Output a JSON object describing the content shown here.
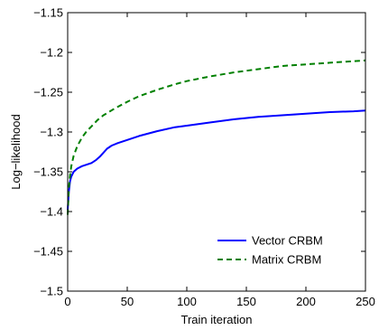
{
  "chart_data": {
    "type": "line",
    "xlabel": "Train iteration",
    "ylabel": "Log−likelihood",
    "xlim": [
      0,
      250
    ],
    "ylim": [
      -1.5,
      -1.15
    ],
    "xticks": [
      0,
      50,
      100,
      150,
      200,
      250
    ],
    "yticks": [
      -1.5,
      -1.45,
      -1.4,
      -1.35,
      -1.3,
      -1.25,
      -1.2,
      -1.15
    ],
    "xtick_labels": [
      "0",
      "50",
      "100",
      "150",
      "200",
      "250"
    ],
    "ytick_labels": [
      "−1.5",
      "−1.45",
      "−1.4",
      "−1.35",
      "−1.3",
      "−1.25",
      "−1.2",
      "−1.15"
    ],
    "grid": false,
    "legend_position": "bottom-right",
    "series": [
      {
        "name": "Vector CRBM",
        "color": "#0000ff",
        "style": "solid",
        "x": [
          0,
          1,
          2,
          3,
          5,
          8,
          12,
          16,
          20,
          24,
          27,
          30,
          33,
          37,
          42,
          50,
          60,
          75,
          90,
          100,
          120,
          140,
          160,
          180,
          200,
          220,
          240,
          250
        ],
        "y": [
          -1.398,
          -1.375,
          -1.362,
          -1.356,
          -1.35,
          -1.346,
          -1.343,
          -1.341,
          -1.339,
          -1.335,
          -1.331,
          -1.326,
          -1.321,
          -1.317,
          -1.314,
          -1.31,
          -1.305,
          -1.299,
          -1.294,
          -1.292,
          -1.288,
          -1.284,
          -1.281,
          -1.279,
          -1.277,
          -1.275,
          -1.274,
          -1.273
        ]
      },
      {
        "name": "Matrix CRBM",
        "color": "#008000",
        "style": "dashed",
        "x": [
          0,
          1,
          2,
          3,
          5,
          8,
          12,
          16,
          20,
          25,
          30,
          40,
          50,
          60,
          75,
          90,
          100,
          120,
          140,
          160,
          180,
          200,
          220,
          240,
          250
        ],
        "y": [
          -1.404,
          -1.37,
          -1.355,
          -1.343,
          -1.33,
          -1.318,
          -1.307,
          -1.299,
          -1.293,
          -1.285,
          -1.279,
          -1.27,
          -1.262,
          -1.255,
          -1.247,
          -1.24,
          -1.236,
          -1.23,
          -1.225,
          -1.221,
          -1.217,
          -1.215,
          -1.213,
          -1.211,
          -1.21
        ]
      }
    ]
  }
}
